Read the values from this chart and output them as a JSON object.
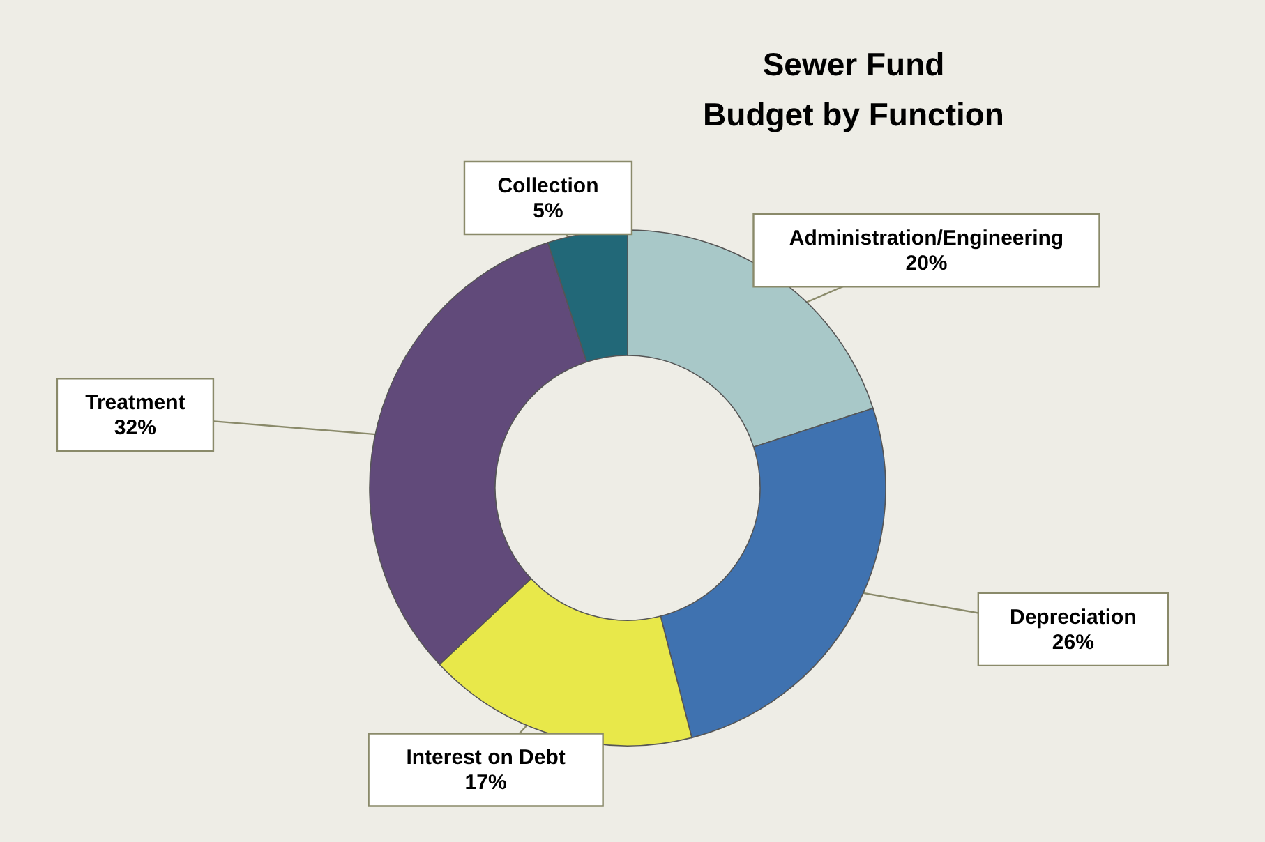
{
  "chart_data": {
    "type": "donut",
    "title": "Sewer Fund\nBudget by Function",
    "categories": [
      "Administration/Engineering",
      "Depreciation",
      "Interest on Debt",
      "Treatment",
      "Collection"
    ],
    "values": [
      20,
      26,
      17,
      32,
      5
    ],
    "colors": [
      "#a8c8c8",
      "#3f72b0",
      "#e8e84a",
      "#614a7a",
      "#226878"
    ],
    "value_labels": [
      "20%",
      "26%",
      "17%",
      "32%",
      "5%"
    ]
  }
}
